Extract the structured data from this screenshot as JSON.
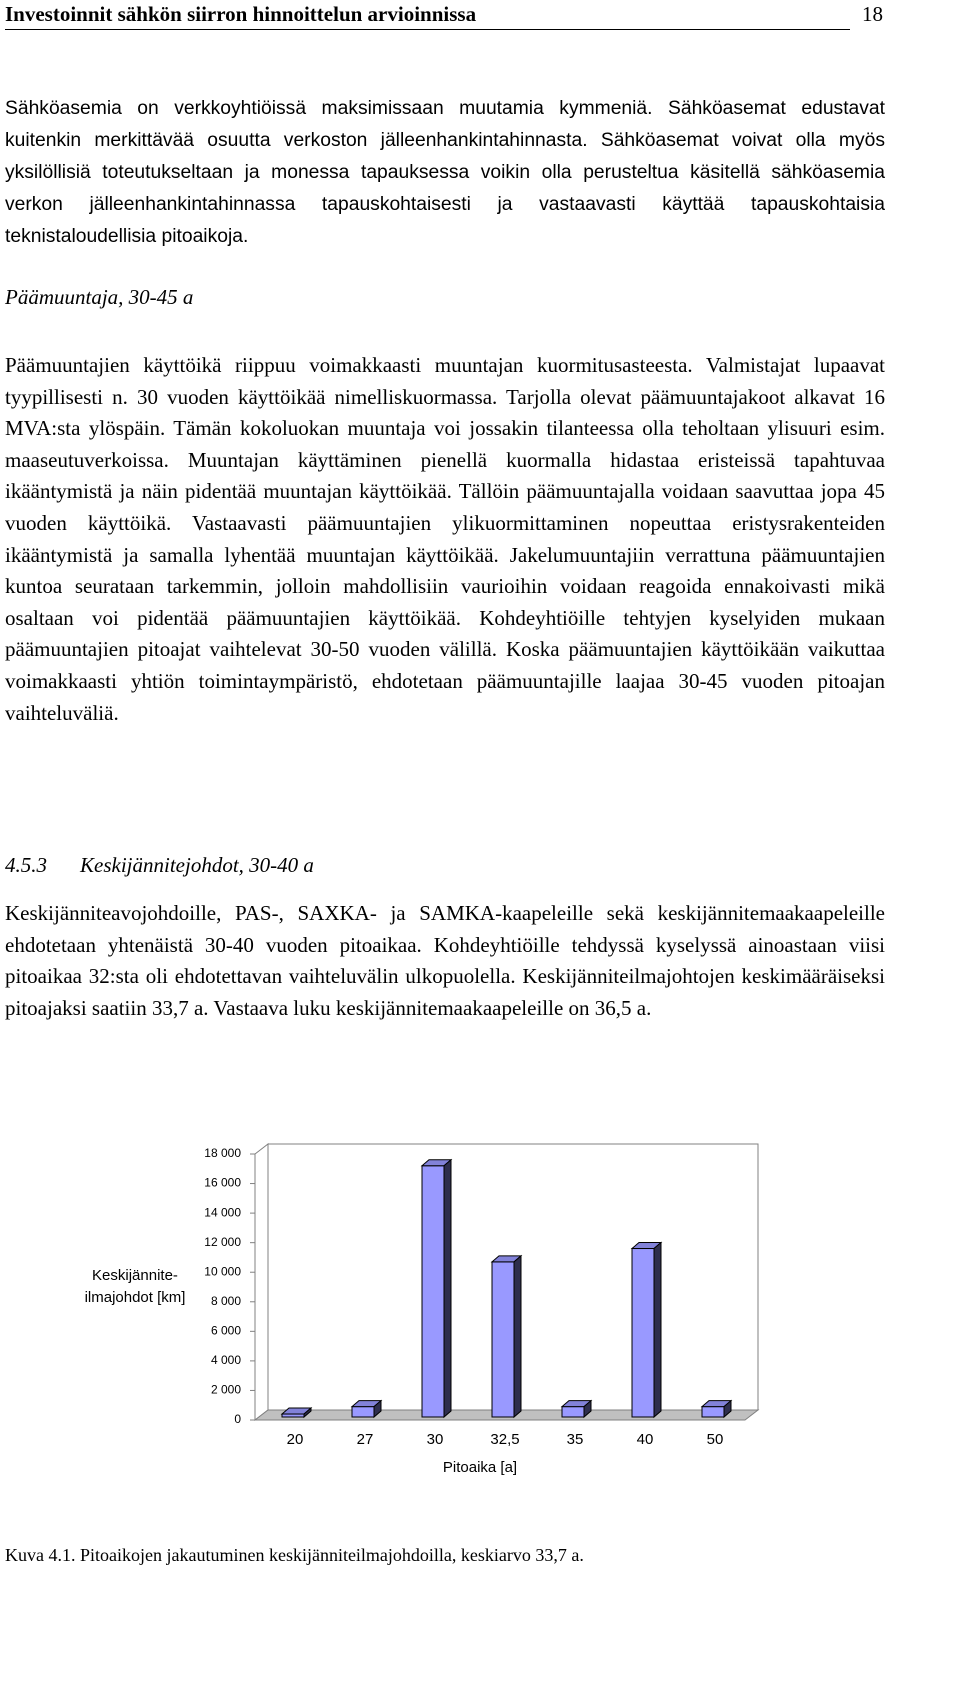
{
  "header": {
    "title": "Investoinnit sähkön siirron hinnoittelun arvioinnissa",
    "page_number": "18"
  },
  "paragraphs": [
    "Sähköasemia on verkkoyhtiöissä maksimissaan muutamia kymmeniä. Sähköasemat edustavat kuitenkin merkittävää osuutta verkoston jälleenhankintahinnasta. Sähköasemat voivat olla myös yksilöllisiä toteutukseltaan ja monessa tapauksessa voikin olla perusteltua käsitellä sähköasemia verkon jälleenhankintahinnassa tapauskohtaisesti ja vastaavasti käyttää tapauskohtaisia teknistaloudellisia pitoaikoja.",
    "Päämuuntajien käyttöikä riippuu voimakkaasti muuntajan kuormitusasteesta. Valmistajat lupaavat tyypillisesti n. 30 vuoden käyttöikää nimelliskuormassa. Tarjolla olevat päämuuntajakoot alkavat 16 MVA:sta ylöspäin. Tämän kokoluokan muuntaja voi jossakin tilanteessa olla teholtaan ylisuuri esim. maaseutuverkoissa. Muuntajan käyttäminen pienellä kuormalla hidastaa eristeissä tapahtuvaa ikääntymistä ja näin pidentää muuntajan käyttöikää. Tällöin päämuuntajalla voidaan saavuttaa jopa 45 vuoden käyttöikä. Vastaavasti päämuuntajien ylikuormittaminen nopeuttaa eristysrakenteiden ikääntymistä ja samalla lyhentää muuntajan käyttöikää. Jakelumuuntajiin verrattuna päämuuntajien kuntoa seurataan tarkemmin, jolloin mahdollisiin vaurioihin voidaan reagoida ennakoivasti mikä osaltaan voi pidentää päämuuntajien käyttöikää. Kohdeyhtiöille tehtyjen kyselyiden mukaan päämuuntajien pitoajat vaihtelevat 30-50 vuoden välillä. Koska päämuuntajien käyttöikään vaikuttaa voimakkaasti yhtiön toimintaympäristö, ehdotetaan päämuuntajille laajaa 30-45 vuoden pitoajan vaihteluväliä.",
    "Keskijänniteavojohdoille, PAS-, SAXKA- ja SAMKA-kaapeleille sekä keskijännitemaakaapeleille ehdotetaan yhtenäistä 30-40 vuoden pitoaikaa. Kohdeyhtiöille tehdyssä kyselyssä ainoastaan viisi pitoaikaa 32:sta oli ehdotettavan vaihteluvälin ulkopuolella. Keskijänniteilmajohtojen keskimääräiseksi pitoajaksi saatiin 33,7 a. Vastaava luku keskijännitemaakaapeleille on 36,5 a."
  ],
  "headings": [
    {
      "text": "Päämuuntaja, 30-45 a"
    },
    {
      "number": "4.5.3",
      "text": "Keskijännitejohdot, 30-40 a"
    }
  ],
  "chart_data": {
    "type": "bar",
    "ylabel": "Keskijännite-\nilmajohdot [km]",
    "xlabel": "Pitoaika [a]",
    "categories": [
      "20",
      "27",
      "30",
      "32,5",
      "35",
      "40",
      "50"
    ],
    "values": [
      200,
      700,
      17000,
      10500,
      700,
      11400,
      700
    ],
    "color": "#9999ff",
    "ylim": [
      0,
      18000
    ],
    "yticks": [
      0,
      {
        "value": 2000,
        "label": "2 000"
      },
      {
        "value": 4000,
        "label": "4 000"
      },
      {
        "value": 6000,
        "label": "6 000"
      },
      {
        "value": 8000,
        "label": "8 000"
      },
      {
        "value": 10000,
        "label": "10 000"
      },
      {
        "value": 12000,
        "label": "12 000"
      },
      {
        "value": 14000,
        "label": "14 000"
      },
      {
        "value": 16000,
        "label": "16 000"
      },
      {
        "value": 18000,
        "label": "18 000"
      }
    ]
  },
  "caption": "Kuva 4.1. Pitoaikojen jakautuminen keskijänniteilmajohdoilla, keskiarvo 33,7 a."
}
